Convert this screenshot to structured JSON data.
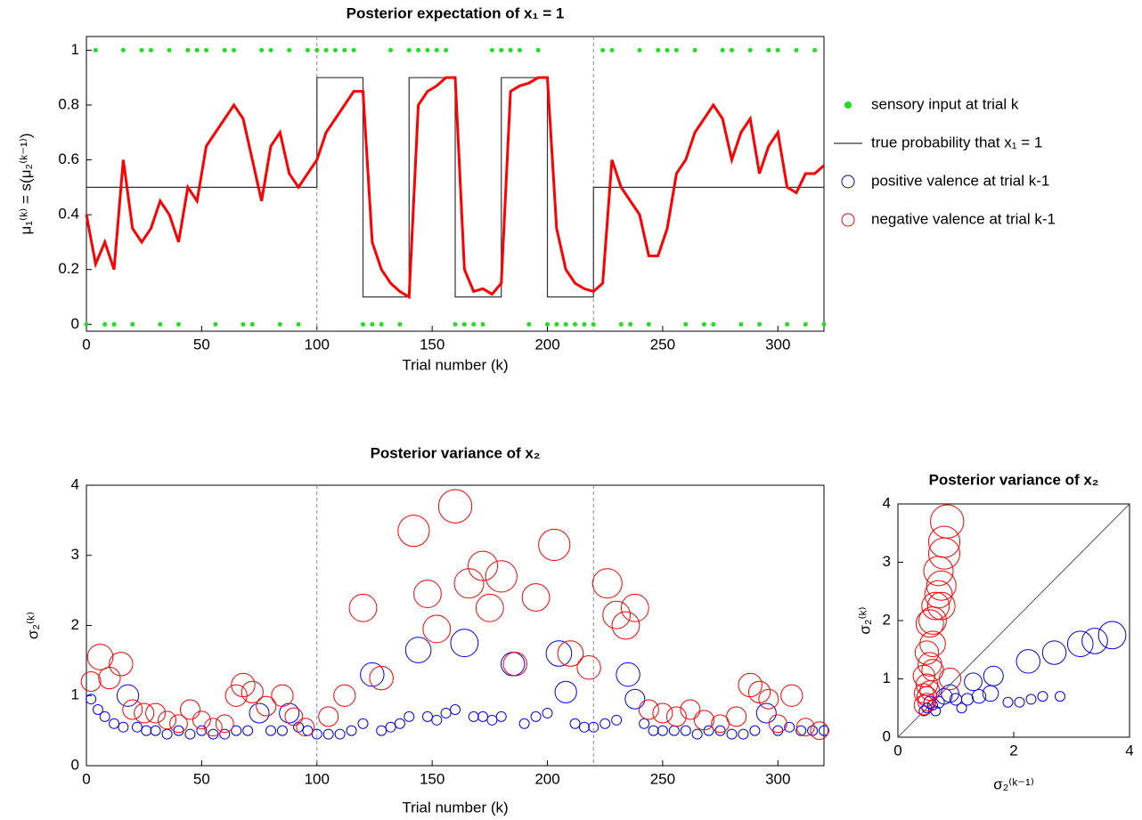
{
  "chart_data": [
    {
      "type": "line",
      "title": "Posterior expectation of x₁ = 1",
      "xlabel": "Trial number (k)",
      "ylabel": "μ₁⁽ᵏ⁾ = s(μ₂⁽ᵏ⁻¹⁾)",
      "xlim": [
        0,
        320
      ],
      "xticks": [
        0,
        50,
        100,
        150,
        200,
        250,
        300
      ],
      "ylim": [
        -0.025,
        1.05
      ],
      "yticks": [
        0,
        0.2,
        0.4,
        0.6,
        0.8,
        1
      ],
      "vlines": [
        100,
        220
      ],
      "color": "#ff0000",
      "x": [
        0,
        4,
        8,
        12,
        16,
        20,
        24,
        28,
        32,
        36,
        40,
        44,
        48,
        52,
        56,
        60,
        64,
        68,
        72,
        76,
        80,
        84,
        88,
        92,
        96,
        100,
        104,
        108,
        112,
        116,
        120,
        124,
        128,
        132,
        136,
        140,
        144,
        148,
        152,
        156,
        160,
        164,
        168,
        172,
        176,
        180,
        184,
        188,
        192,
        196,
        200,
        204,
        208,
        212,
        216,
        220,
        224,
        228,
        232,
        236,
        240,
        244,
        248,
        252,
        256,
        260,
        264,
        268,
        272,
        276,
        280,
        284,
        288,
        292,
        296,
        300,
        304,
        308,
        312,
        316,
        320
      ],
      "values": [
        0.4,
        0.22,
        0.3,
        0.2,
        0.6,
        0.35,
        0.3,
        0.35,
        0.45,
        0.4,
        0.3,
        0.5,
        0.45,
        0.65,
        0.7,
        0.75,
        0.8,
        0.75,
        0.6,
        0.45,
        0.65,
        0.7,
        0.55,
        0.5,
        0.55,
        0.6,
        0.7,
        0.75,
        0.8,
        0.85,
        0.85,
        0.3,
        0.2,
        0.15,
        0.12,
        0.1,
        0.8,
        0.85,
        0.87,
        0.9,
        0.9,
        0.2,
        0.12,
        0.13,
        0.11,
        0.15,
        0.85,
        0.87,
        0.88,
        0.9,
        0.9,
        0.35,
        0.2,
        0.15,
        0.13,
        0.12,
        0.15,
        0.6,
        0.5,
        0.45,
        0.4,
        0.25,
        0.25,
        0.35,
        0.55,
        0.6,
        0.7,
        0.75,
        0.8,
        0.75,
        0.6,
        0.7,
        0.75,
        0.55,
        0.65,
        0.7,
        0.5,
        0.48,
        0.55,
        0.55,
        0.58
      ],
      "series": [
        {
          "name": "sensory input at trial k",
          "color": "#22dd22",
          "marker": "dot",
          "x": [
            0,
            4,
            8,
            12,
            16,
            20,
            24,
            28,
            32,
            36,
            40,
            44,
            48,
            52,
            56,
            60,
            64,
            68,
            72,
            76,
            80,
            84,
            88,
            92,
            96,
            100,
            104,
            108,
            112,
            116,
            120,
            124,
            128,
            132,
            136,
            140,
            144,
            148,
            152,
            156,
            160,
            164,
            168,
            172,
            176,
            180,
            184,
            188,
            192,
            196,
            200,
            204,
            208,
            212,
            216,
            220,
            224,
            228,
            232,
            236,
            240,
            244,
            248,
            252,
            256,
            260,
            264,
            268,
            272,
            276,
            280,
            284,
            288,
            292,
            296,
            300,
            304,
            308,
            312,
            316,
            320
          ],
          "values": [
            0,
            1,
            0,
            0,
            1,
            0,
            1,
            1,
            0,
            1,
            0,
            1,
            1,
            1,
            0,
            1,
            1,
            0,
            0,
            1,
            1,
            0,
            1,
            0,
            1,
            1,
            1,
            1,
            1,
            1,
            0,
            0,
            0,
            1,
            0,
            1,
            1,
            1,
            1,
            1,
            0,
            0,
            0,
            0,
            1,
            1,
            1,
            1,
            0,
            1,
            0,
            0,
            0,
            0,
            0,
            0,
            1,
            1,
            0,
            0,
            1,
            0,
            1,
            1,
            1,
            0,
            1,
            0,
            0,
            1,
            1,
            0,
            1,
            0,
            1,
            1,
            0,
            1,
            0,
            1,
            0
          ]
        },
        {
          "name": "true probability that x₁ = 1",
          "color": "#333333",
          "marker": "line",
          "x": [
            0,
            100,
            100,
            120,
            120,
            140,
            140,
            160,
            160,
            180,
            180,
            200,
            200,
            220,
            220,
            320
          ],
          "values": [
            0.5,
            0.5,
            0.9,
            0.9,
            0.1,
            0.1,
            0.9,
            0.9,
            0.1,
            0.1,
            0.9,
            0.9,
            0.1,
            0.1,
            0.5,
            0.5
          ]
        }
      ]
    },
    {
      "type": "scatter",
      "title": "Posterior variance of x₂",
      "xlabel": "Trial number (k)",
      "ylabel": "σ₂⁽ᵏ⁾",
      "xlim": [
        0,
        320
      ],
      "xticks": [
        0,
        50,
        100,
        150,
        200,
        250,
        300
      ],
      "ylim": [
        0,
        4
      ],
      "yticks": [
        0,
        1,
        2,
        3,
        4
      ],
      "vlines": [
        100,
        220
      ],
      "series": [
        {
          "name": "positive valence at trial k-1",
          "color": "#0000ff",
          "x": [
            2,
            5,
            8,
            12,
            16,
            18,
            22,
            26,
            30,
            35,
            40,
            45,
            50,
            55,
            60,
            65,
            70,
            75,
            80,
            85,
            88,
            92,
            96,
            100,
            105,
            110,
            115,
            120,
            124,
            128,
            132,
            136,
            140,
            144,
            148,
            152,
            156,
            160,
            164,
            168,
            172,
            176,
            180,
            185,
            190,
            195,
            200,
            205,
            208,
            212,
            216,
            220,
            225,
            230,
            235,
            238,
            242,
            246,
            250,
            255,
            260,
            265,
            270,
            275,
            280,
            285,
            290,
            295,
            300,
            305,
            310,
            315,
            320
          ],
          "values": [
            0.95,
            0.8,
            0.7,
            0.6,
            0.55,
            1.0,
            0.55,
            0.5,
            0.5,
            0.45,
            0.5,
            0.45,
            0.5,
            0.45,
            0.45,
            0.5,
            0.5,
            0.75,
            0.5,
            0.5,
            0.75,
            0.55,
            0.5,
            0.45,
            0.45,
            0.45,
            0.5,
            0.6,
            1.3,
            0.5,
            0.55,
            0.6,
            0.7,
            1.65,
            0.7,
            0.65,
            0.75,
            0.8,
            1.75,
            0.7,
            0.7,
            0.65,
            0.7,
            1.45,
            0.6,
            0.7,
            0.75,
            1.6,
            1.05,
            0.6,
            0.55,
            0.55,
            0.6,
            0.65,
            1.3,
            0.95,
            0.6,
            0.5,
            0.5,
            0.5,
            0.5,
            0.45,
            0.5,
            0.5,
            0.45,
            0.45,
            0.5,
            0.75,
            0.5,
            0.55,
            0.5,
            0.5,
            0.5
          ],
          "sizes": [
            5,
            5,
            5,
            5,
            5,
            11,
            5,
            5,
            5,
            5,
            5,
            5,
            5,
            5,
            5,
            5,
            5,
            10,
            5,
            5,
            10,
            5,
            5,
            5,
            5,
            5,
            5,
            5,
            12,
            5,
            5,
            5,
            5,
            13,
            5,
            5,
            5,
            5,
            14,
            5,
            5,
            5,
            5,
            12,
            5,
            5,
            5,
            13,
            11,
            5,
            5,
            5,
            5,
            5,
            12,
            10,
            5,
            5,
            5,
            5,
            5,
            5,
            5,
            5,
            5,
            5,
            5,
            10,
            5,
            5,
            5,
            5,
            5
          ]
        },
        {
          "name": "negative valence at trial k-1",
          "color": "#ff0000",
          "x": [
            2,
            6,
            10,
            15,
            20,
            25,
            30,
            35,
            40,
            45,
            50,
            55,
            60,
            65,
            68,
            72,
            78,
            85,
            90,
            95,
            105,
            112,
            120,
            128,
            142,
            148,
            152,
            160,
            166,
            172,
            175,
            180,
            186,
            195,
            203,
            210,
            218,
            226,
            230,
            234,
            238,
            244,
            250,
            256,
            262,
            268,
            275,
            282,
            288,
            292,
            296,
            300,
            306,
            312,
            318
          ],
          "values": [
            1.2,
            1.55,
            1.25,
            1.45,
            0.8,
            0.75,
            0.75,
            0.65,
            0.6,
            0.8,
            0.65,
            0.55,
            0.6,
            1.0,
            1.15,
            1.05,
            0.85,
            1.0,
            0.7,
            0.55,
            0.7,
            1.0,
            2.25,
            1.25,
            3.35,
            2.45,
            1.95,
            3.7,
            2.6,
            2.85,
            2.25,
            2.7,
            1.45,
            2.4,
            3.15,
            1.6,
            1.4,
            2.6,
            2.15,
            2.0,
            2.25,
            0.8,
            0.75,
            0.7,
            0.8,
            0.65,
            0.6,
            0.7,
            1.15,
            1.05,
            0.95,
            0.6,
            1.0,
            0.55,
            0.5
          ],
          "sizes": [
            10,
            13,
            11,
            12,
            10,
            10,
            10,
            9,
            9,
            10,
            9,
            9,
            9,
            11,
            12,
            11,
            10,
            11,
            9,
            9,
            10,
            11,
            14,
            12,
            16,
            14,
            14,
            17,
            15,
            15,
            14,
            16,
            12,
            14,
            16,
            13,
            12,
            15,
            14,
            14,
            14,
            10,
            10,
            10,
            10,
            10,
            9,
            10,
            12,
            11,
            10,
            9,
            11,
            9,
            9
          ]
        }
      ]
    },
    {
      "type": "scatter",
      "title": "Posterior variance of x₂",
      "xlabel": "σ₂⁽ᵏ⁻¹⁾",
      "ylabel": "σ₂⁽ᵏ⁾",
      "xlim": [
        0,
        4
      ],
      "xticks": [
        0,
        2,
        4
      ],
      "ylim": [
        0,
        4
      ],
      "yticks": [
        0,
        1,
        2,
        3,
        4
      ],
      "diagonal": true,
      "series": [
        {
          "color": "#0000ff",
          "x": [
            0.45,
            0.5,
            0.6,
            0.7,
            0.8,
            0.9,
            1.0,
            1.2,
            1.4,
            1.6,
            1.3,
            1.65,
            2.25,
            2.7,
            3.15,
            3.4,
            3.7,
            1.9,
            2.1,
            2.3,
            2.5,
            2.8,
            0.55,
            0.65,
            1.1
          ],
          "values": [
            0.45,
            0.5,
            0.55,
            0.6,
            0.7,
            0.75,
            0.65,
            0.65,
            0.7,
            0.75,
            0.95,
            1.05,
            1.3,
            1.45,
            1.6,
            1.65,
            1.75,
            0.6,
            0.6,
            0.65,
            0.7,
            0.7,
            0.6,
            0.45,
            0.5
          ],
          "sizes": [
            5,
            5,
            5,
            6,
            8,
            9,
            6,
            6,
            7,
            8,
            9,
            10,
            12,
            12,
            13,
            13,
            14,
            5,
            5,
            5,
            5,
            5,
            6,
            5,
            5
          ]
        },
        {
          "color": "#ff0000",
          "x": [
            0.45,
            0.5,
            0.5,
            0.45,
            0.55,
            0.5,
            0.6,
            0.55,
            0.65,
            0.7,
            0.75,
            0.7,
            0.8,
            0.8,
            0.85,
            0.6,
            0.75,
            0.5,
            0.45,
            0.9,
            0.55,
            0.6
          ],
          "values": [
            0.55,
            0.7,
            0.9,
            1.05,
            1.25,
            1.45,
            1.6,
            1.95,
            2.25,
            2.45,
            2.6,
            2.85,
            3.15,
            3.35,
            3.7,
            2.0,
            2.25,
            0.6,
            0.75,
            1.0,
            0.8,
            1.15
          ],
          "sizes": [
            10,
            10,
            11,
            11,
            12,
            12,
            13,
            14,
            14,
            14,
            15,
            15,
            16,
            16,
            17,
            14,
            14,
            9,
            10,
            11,
            10,
            11
          ]
        }
      ]
    }
  ]
}
